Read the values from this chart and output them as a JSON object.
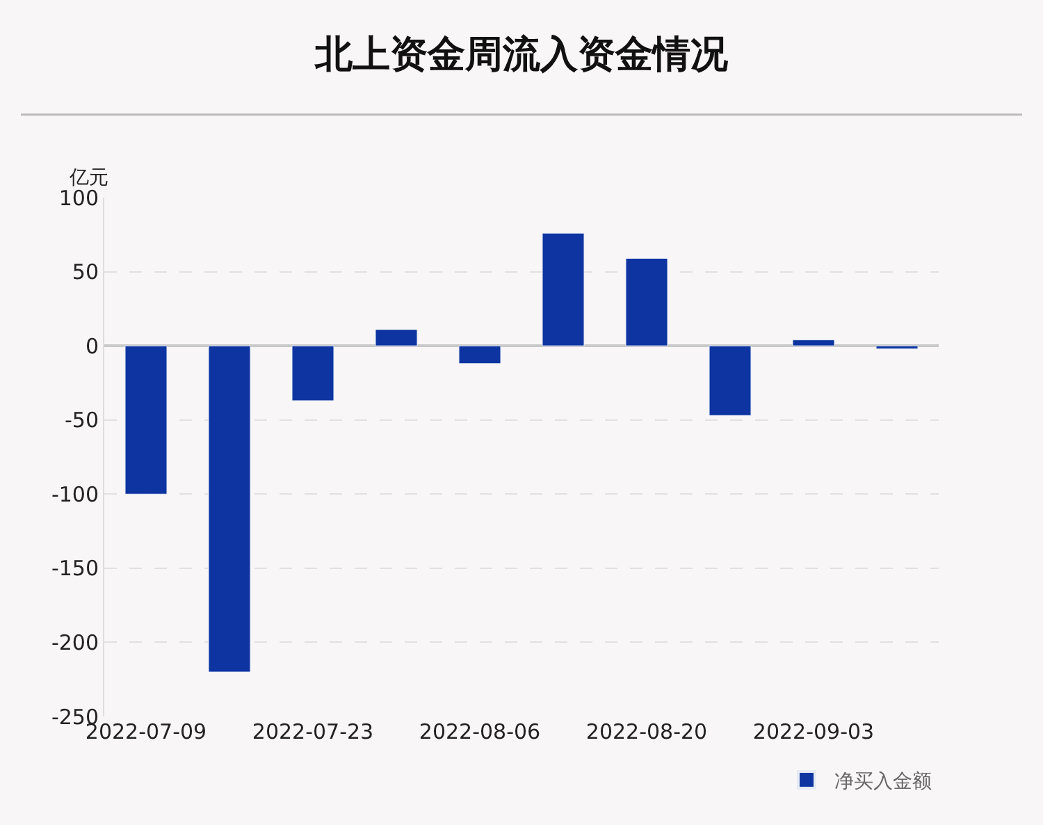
{
  "chart_data": {
    "type": "bar",
    "title": "北上资金周流入资金情况",
    "ylabel": "亿元",
    "categories": [
      "2022-07-09",
      null,
      "2022-07-23",
      null,
      "2022-08-06",
      null,
      "2022-08-20",
      null,
      "2022-09-03",
      null
    ],
    "series": [
      {
        "name": "净买入金额",
        "color": "#0d34a0",
        "values": [
          -100,
          -220,
          -37,
          11,
          -12,
          76,
          59,
          -47,
          4,
          -2
        ]
      }
    ],
    "ylim": [
      -250,
      100
    ],
    "yticks": [
      -250,
      -200,
      -150,
      -100,
      -50,
      0,
      50,
      100
    ],
    "grid": "y",
    "legend": "bottom right"
  }
}
